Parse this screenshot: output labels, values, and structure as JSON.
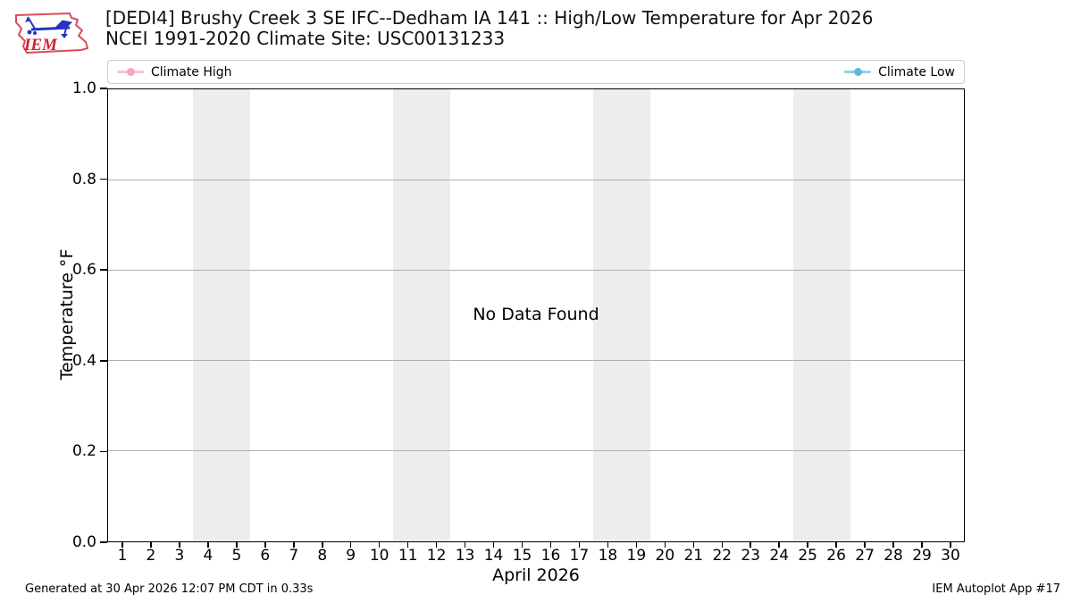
{
  "header": {
    "logo_text": "IEM",
    "title_line1": "[DEDI4] Brushy Creek 3 SE IFC--Dedham IA 141 :: High/Low Temperature for Apr 2026",
    "title_line2": "NCEI 1991-2020 Climate Site: USC00131233"
  },
  "legend": {
    "items": [
      {
        "label": "Climate High",
        "line_color": "#fcc3d0",
        "marker_color": "#f7a6bb"
      },
      {
        "label": "Climate Low",
        "line_color": "#90d2e8",
        "marker_color": "#5fb7da"
      }
    ]
  },
  "chart_data": {
    "type": "line",
    "title": "[DEDI4] Brushy Creek 3 SE IFC--Dedham IA 141 :: High/Low Temperature for Apr 2026",
    "subtitle": "NCEI 1991-2020 Climate Site: USC00131233",
    "xlabel": "April 2026",
    "ylabel": "Temperature °F",
    "x_ticks": [
      1,
      2,
      3,
      4,
      5,
      6,
      7,
      8,
      9,
      10,
      11,
      12,
      13,
      14,
      15,
      16,
      17,
      18,
      19,
      20,
      21,
      22,
      23,
      24,
      25,
      26,
      27,
      28,
      29,
      30
    ],
    "y_ticks": [
      0.0,
      0.2,
      0.4,
      0.6,
      0.8,
      1.0
    ],
    "ylim": [
      0.0,
      1.0
    ],
    "grid": "horizontal",
    "grid_color": "#b0b0b0",
    "legend_position": "top",
    "series": [
      {
        "name": "Climate High",
        "color": "#f7a6bb",
        "values": []
      },
      {
        "name": "Climate Low",
        "color": "#5fb7da",
        "values": []
      }
    ],
    "no_data_message": "No Data Found",
    "weekend_bands": [
      [
        3.5,
        5.5
      ],
      [
        10.5,
        12.5
      ],
      [
        17.5,
        19.5
      ],
      [
        24.5,
        26.5
      ]
    ],
    "band_color": "#ededed"
  },
  "footer": {
    "left": "Generated at 30 Apr 2026 12:07 PM CDT in 0.33s",
    "right": "IEM Autoplot App #17"
  }
}
